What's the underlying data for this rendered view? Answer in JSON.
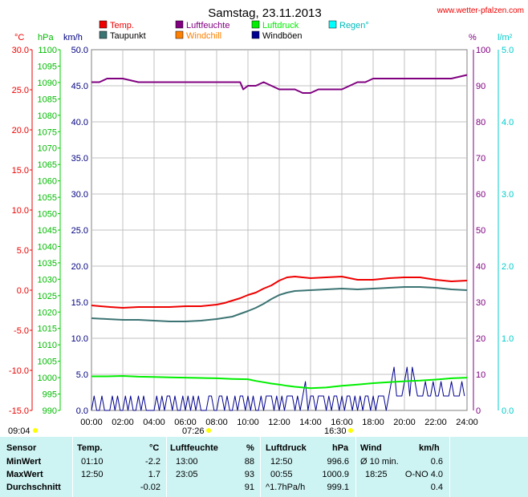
{
  "title": "Samstag, 23.11.2013",
  "site": "www.wetter-pfalzen.com",
  "colors": {
    "temp": "#ee0000",
    "taupunkt": "#3c7373",
    "luftfeuchte": "#800080",
    "windchill": "#ff8000",
    "luftdruck": "#00ee00",
    "windboeen": "#000090",
    "regen": "#00ffff",
    "axis_c": "#ee0000",
    "axis_hpa": "#00cc00",
    "axis_kmh": "#000080",
    "axis_pct": "#800080",
    "axis_lm2": "#00cccc"
  },
  "axes": {
    "unit_c": "°C",
    "unit_hpa": "hPa",
    "unit_kmh": "km/h",
    "unit_pct": "%",
    "unit_lm2": "l/m²",
    "c_ticks": [
      "30.0",
      "25.0",
      "20.0",
      "15.0",
      "10.0",
      "5.0",
      "0.0",
      "-5.0",
      "-10.0",
      "-15.0"
    ],
    "hpa_ticks": [
      "1100",
      "1095",
      "1090",
      "1085",
      "1080",
      "1075",
      "1070",
      "1065",
      "1060",
      "1055",
      "1050",
      "1045",
      "1040",
      "1035",
      "1030",
      "1025",
      "1020",
      "1015",
      "1010",
      "1005",
      "1000",
      "995",
      "990"
    ],
    "kmh_ticks": [
      "50.0",
      "45.0",
      "40.0",
      "35.0",
      "30.0",
      "25.0",
      "20.0",
      "15.0",
      "10.0",
      "5.0",
      "0.0"
    ],
    "pct_ticks": [
      "100",
      "90",
      "80",
      "70",
      "60",
      "50",
      "40",
      "30",
      "20",
      "10",
      "0"
    ],
    "lm2_ticks": [
      "5.0",
      "4.0",
      "3.0",
      "2.0",
      "1.0",
      "0.0"
    ],
    "x_ticks": [
      "00:00",
      "02:00",
      "04:00",
      "06:00",
      "08:00",
      "10:00",
      "12:00",
      "14:00",
      "16:00",
      "18:00",
      "20:00",
      "22:00",
      "24:00"
    ]
  },
  "legend": {
    "temp": "Temp.",
    "taupunkt": "Taupunkt",
    "luftfeuchte": "Luftfeuchte",
    "windchill": "Windchill",
    "luftdruck": "Luftdruck",
    "windboeen": "Windböen",
    "regen": "Regen°"
  },
  "sun": {
    "moonrise": "09:04",
    "sunrise": "07:26",
    "sunset": "16:30"
  },
  "chart_data": {
    "type": "line",
    "title": "Samstag, 23.11.2013",
    "xlabel": "",
    "x_range_hours": [
      0,
      24
    ],
    "series": [
      {
        "name": "Temp.",
        "axis": "°C",
        "x": [
          0,
          1.2,
          2,
          3,
          4,
          5,
          6,
          7,
          7.5,
          8,
          8.5,
          9,
          9.5,
          10,
          10.5,
          11,
          11.5,
          12,
          12.5,
          13,
          14,
          15,
          16,
          17,
          18,
          19,
          20,
          21,
          22,
          23,
          24
        ],
        "values": [
          -1.9,
          -2.1,
          -2.2,
          -2.1,
          -2.1,
          -2.1,
          -2.0,
          -2.0,
          -1.9,
          -1.8,
          -1.6,
          -1.3,
          -1.0,
          -0.6,
          -0.3,
          0.2,
          0.6,
          1.2,
          1.6,
          1.7,
          1.5,
          1.6,
          1.7,
          1.3,
          1.3,
          1.5,
          1.6,
          1.6,
          1.3,
          1.1,
          1.2
        ]
      },
      {
        "name": "Taupunkt",
        "axis": "°C",
        "x": [
          0,
          1,
          2,
          3,
          4,
          5,
          6,
          7,
          8,
          9,
          10,
          10.5,
          11,
          11.5,
          12,
          12.5,
          13,
          14,
          15,
          16,
          17,
          18,
          19,
          20,
          21,
          22,
          23,
          24
        ],
        "values": [
          -3.5,
          -3.6,
          -3.7,
          -3.7,
          -3.8,
          -3.9,
          -3.9,
          -3.8,
          -3.6,
          -3.3,
          -2.6,
          -2.2,
          -1.7,
          -1.1,
          -0.6,
          -0.3,
          -0.1,
          0.0,
          0.1,
          0.2,
          0.1,
          0.2,
          0.3,
          0.4,
          0.4,
          0.3,
          0.1,
          0.0
        ]
      },
      {
        "name": "Luftfeuchte",
        "axis": "%",
        "x": [
          0,
          0.5,
          1,
          2,
          3,
          4,
          5,
          6,
          7,
          8,
          9,
          9.5,
          9.7,
          10,
          10.5,
          11,
          11.5,
          12,
          13,
          13.5,
          14,
          14.5,
          15,
          16,
          17,
          17.5,
          18,
          19,
          20,
          21,
          22,
          23,
          24
        ],
        "values": [
          91,
          91,
          92,
          92,
          91,
          91,
          91,
          91,
          91,
          91,
          91,
          91,
          89,
          90,
          90,
          91,
          90,
          89,
          89,
          88,
          88,
          89,
          89,
          89,
          91,
          91,
          92,
          92,
          92,
          92,
          92,
          92,
          93
        ]
      },
      {
        "name": "Luftdruck",
        "axis": "hPa",
        "x": [
          0,
          1,
          2,
          3,
          4,
          5,
          6,
          7,
          8,
          9,
          10,
          10.5,
          11,
          11.5,
          12,
          12.5,
          13,
          13.5,
          14,
          15,
          16,
          17,
          18,
          19,
          20,
          21,
          22,
          22.5,
          23,
          24
        ],
        "values": [
          1000.4,
          1000.4,
          1000.5,
          1000.3,
          1000.2,
          1000.1,
          1000.0,
          999.9,
          999.8,
          999.6,
          999.5,
          999.0,
          998.6,
          998.2,
          997.9,
          997.5,
          997.2,
          997.0,
          996.8,
          997.0,
          997.5,
          997.9,
          998.3,
          998.6,
          998.9,
          999.1,
          999.4,
          999.6,
          999.8,
          1000.0
        ]
      },
      {
        "name": "Windböen",
        "axis": "km/h",
        "x_step_hours": 0.1667,
        "values": [
          0,
          2,
          0,
          0,
          2,
          0,
          0,
          0,
          2,
          0,
          2,
          0,
          0,
          2,
          0,
          2,
          0,
          0,
          2,
          0,
          2,
          0,
          0,
          0,
          0,
          2,
          0,
          2,
          0,
          2,
          2,
          0,
          2,
          0,
          0,
          2,
          0,
          2,
          0,
          2,
          0,
          2,
          0,
          0,
          0,
          2,
          2,
          0,
          0,
          2,
          2,
          0,
          2,
          0,
          0,
          2,
          0,
          2,
          2,
          0,
          2,
          0,
          2,
          0,
          0,
          2,
          0,
          2,
          2,
          2,
          0,
          2,
          0,
          2,
          0,
          2,
          2,
          2,
          0,
          2,
          0,
          2,
          4,
          0,
          2,
          2,
          0,
          2,
          2,
          2,
          0,
          2,
          0,
          2,
          2,
          0,
          2,
          0,
          2,
          2,
          0,
          2,
          0,
          2,
          0,
          2,
          2,
          0,
          2,
          0,
          2,
          2,
          2,
          0,
          2,
          4,
          6,
          2,
          2,
          2,
          4,
          6,
          2,
          6,
          4,
          2,
          2,
          2,
          4,
          2,
          2,
          4,
          2,
          2,
          4,
          2,
          2,
          2,
          4,
          2,
          2,
          2,
          4,
          2,
          2,
          2
        ]
      }
    ]
  },
  "table": {
    "headers": {
      "sensor": "Sensor",
      "temp": "Temp.",
      "c": "°C",
      "luftfeuchte": "Luftfeuchte",
      "pct": "%",
      "luftdruck": "Luftdruck",
      "hpa": "hPa",
      "wind": "Wind",
      "kmh": "km/h"
    },
    "rows": [
      {
        "label": "MinWert",
        "t_time": "01:10",
        "t_val": "-2.2",
        "h_time": "13:00",
        "h_val": "88",
        "p_time": "12:50",
        "p_val": "996.6",
        "w_time": "Ø 10 min.",
        "w_val": "0.6"
      },
      {
        "label": "MaxWert",
        "t_time": "12:50",
        "t_val": "1.7",
        "h_time": "23:05",
        "h_val": "93",
        "p_time": "00:55",
        "p_val": "1000.9",
        "w_time": "18:25",
        "w_val": "O-NO 4.0"
      },
      {
        "label": "Durchschnitt",
        "t_time": "",
        "t_val": "-0.02",
        "h_time": "",
        "h_val": "91",
        "p_time": "^1.7hPa/h",
        "p_val": "999.1",
        "w_time": "",
        "w_val": "0.4"
      }
    ]
  }
}
